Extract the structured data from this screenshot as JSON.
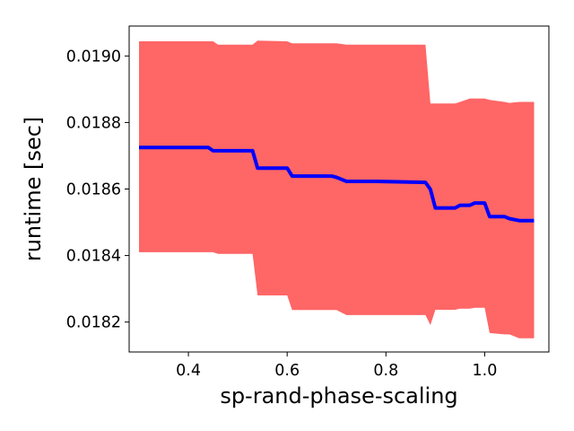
{
  "chart_data": {
    "type": "line",
    "xlabel": "sp-rand-phase-scaling",
    "ylabel": "runtime [sec]",
    "xlim": [
      0.28,
      1.13
    ],
    "ylim": [
      0.01811,
      0.01909
    ],
    "xticks": [
      0.4,
      0.6,
      0.8,
      1.0
    ],
    "xtick_labels": [
      "0.4",
      "0.6",
      "0.8",
      "1.0"
    ],
    "yticks": [
      0.0182,
      0.0184,
      0.0186,
      0.0188,
      0.019
    ],
    "ytick_labels": [
      "0.0182",
      "0.0184",
      "0.0186",
      "0.0188",
      "0.0190"
    ],
    "grid": false,
    "series": [
      {
        "role": "mean",
        "color": "#0000ff",
        "x": [
          0.3,
          0.44,
          0.45,
          0.53,
          0.54,
          0.6,
          0.61,
          0.69,
          0.7,
          0.72,
          0.78,
          0.88,
          0.89,
          0.9,
          0.92,
          0.94,
          0.95,
          0.97,
          0.98,
          1.0,
          1.01,
          1.04,
          1.05,
          1.07,
          1.1
        ],
        "y": [
          0.018725,
          0.018725,
          0.018715,
          0.018715,
          0.018663,
          0.018663,
          0.018639,
          0.018639,
          0.018635,
          0.018623,
          0.018623,
          0.01862,
          0.018599,
          0.018543,
          0.018543,
          0.018543,
          0.018551,
          0.018551,
          0.018558,
          0.018558,
          0.018517,
          0.018517,
          0.018511,
          0.018505,
          0.018505
        ]
      },
      {
        "role": "band",
        "color": "#ff6666",
        "x": [
          0.3,
          0.45,
          0.46,
          0.53,
          0.54,
          0.6,
          0.61,
          0.68,
          0.7,
          0.72,
          0.88,
          0.89,
          0.9,
          0.94,
          0.95,
          0.97,
          0.98,
          1.0,
          1.01,
          1.04,
          1.05,
          1.07,
          1.1
        ],
        "upper": [
          0.019044,
          0.019044,
          0.019034,
          0.019034,
          0.019046,
          0.019044,
          0.019038,
          0.019038,
          0.019038,
          0.019034,
          0.019034,
          0.018857,
          0.018857,
          0.018857,
          0.018862,
          0.018872,
          0.018872,
          0.018872,
          0.018868,
          0.018862,
          0.018859,
          0.018862,
          0.018862
        ],
        "lower": [
          0.01841,
          0.01841,
          0.018405,
          0.018405,
          0.01828,
          0.01828,
          0.018236,
          0.018236,
          0.018236,
          0.018221,
          0.018221,
          0.018191,
          0.018237,
          0.018237,
          0.01824,
          0.01824,
          0.018243,
          0.018243,
          0.018167,
          0.018163,
          0.018163,
          0.018151,
          0.018151
        ]
      }
    ]
  }
}
